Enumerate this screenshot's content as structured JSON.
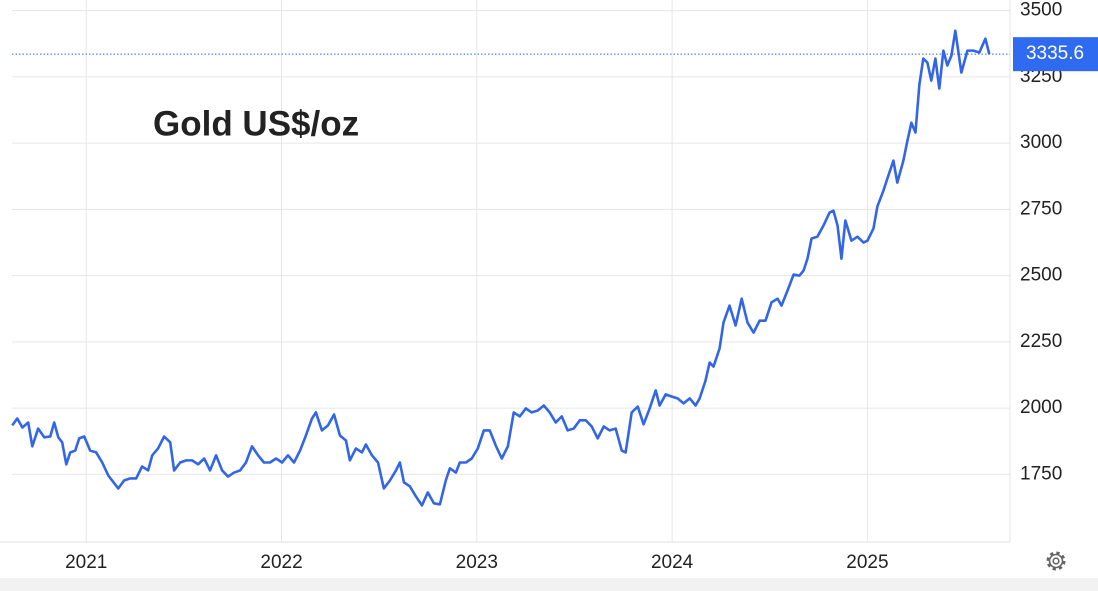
{
  "chart_data": {
    "type": "line",
    "title": "Gold US$/oz",
    "color": "#3366e6",
    "grid": true,
    "x": [
      2020.621,
      2020.647,
      2020.673,
      2020.703,
      2020.724,
      2020.754,
      2020.785,
      2020.816,
      2020.836,
      2020.857,
      2020.877,
      2020.898,
      2020.918,
      2020.944,
      2020.964,
      2020.99,
      2021.02,
      2021.051,
      2021.082,
      2021.113,
      2021.164,
      2021.194,
      2021.225,
      2021.256,
      2021.286,
      2021.317,
      2021.338,
      2021.368,
      2021.399,
      2021.43,
      2021.45,
      2021.481,
      2021.512,
      2021.542,
      2021.573,
      2021.604,
      2021.634,
      2021.665,
      2021.696,
      2021.726,
      2021.757,
      2021.788,
      2021.818,
      2021.849,
      2021.88,
      2021.91,
      2021.941,
      2021.972,
      2022.003,
      2022.033,
      2022.064,
      2022.095,
      2022.125,
      2022.156,
      2022.176,
      2022.207,
      2022.238,
      2022.269,
      2022.299,
      2022.33,
      2022.35,
      2022.381,
      2022.412,
      2022.432,
      2022.463,
      2022.494,
      2022.524,
      2022.555,
      2022.586,
      2022.606,
      2022.627,
      2022.657,
      2022.688,
      2022.719,
      2022.749,
      2022.78,
      2022.811,
      2022.841,
      2022.862,
      2022.893,
      2022.913,
      2022.944,
      2022.974,
      2023.005,
      2023.036,
      2023.066,
      2023.097,
      2023.128,
      2023.159,
      2023.189,
      2023.22,
      2023.251,
      2023.281,
      2023.312,
      2023.343,
      2023.373,
      2023.404,
      2023.435,
      2023.465,
      2023.496,
      2023.527,
      2023.558,
      2023.588,
      2023.619,
      2023.65,
      2023.68,
      2023.711,
      2023.742,
      2023.762,
      2023.793,
      2023.824,
      2023.854,
      2023.885,
      2023.916,
      2023.936,
      2023.967,
      2023.997,
      2024.028,
      2024.059,
      2024.09,
      2024.12,
      2024.141,
      2024.171,
      2024.192,
      2024.212,
      2024.243,
      2024.263,
      2024.294,
      2024.325,
      2024.356,
      2024.386,
      2024.417,
      2024.448,
      2024.478,
      2024.509,
      2024.54,
      2024.56,
      2024.591,
      2024.622,
      2024.652,
      2024.673,
      2024.693,
      2024.714,
      2024.744,
      2024.775,
      2024.806,
      2024.826,
      2024.847,
      2024.867,
      2024.887,
      2024.918,
      2024.949,
      2024.98,
      2025.0,
      2025.031,
      2025.051,
      2025.082,
      2025.102,
      2025.133,
      2025.153,
      2025.184,
      2025.205,
      2025.225,
      2025.246,
      2025.266,
      2025.286,
      2025.307,
      2025.327,
      2025.348,
      2025.368,
      2025.389,
      2025.409,
      2025.43,
      2025.45,
      2025.481,
      2025.512,
      2025.542,
      2025.573,
      2025.604,
      2025.624
    ],
    "values": [
      1935,
      1961,
      1927,
      1946,
      1856,
      1923,
      1890,
      1893,
      1946,
      1890,
      1871,
      1788,
      1833,
      1840,
      1886,
      1893,
      1840,
      1833,
      1795,
      1746,
      1697,
      1727,
      1735,
      1735,
      1780,
      1765,
      1822,
      1848,
      1893,
      1871,
      1765,
      1795,
      1803,
      1803,
      1788,
      1810,
      1765,
      1822,
      1765,
      1742,
      1757,
      1765,
      1795,
      1856,
      1822,
      1795,
      1795,
      1810,
      1795,
      1822,
      1795,
      1840,
      1897,
      1961,
      1984,
      1916,
      1935,
      1976,
      1897,
      1878,
      1803,
      1848,
      1833,
      1863,
      1822,
      1795,
      1697,
      1727,
      1765,
      1795,
      1720,
      1705,
      1667,
      1633,
      1682,
      1641,
      1637,
      1727,
      1773,
      1757,
      1795,
      1795,
      1810,
      1848,
      1916,
      1916,
      1859,
      1810,
      1856,
      1984,
      1969,
      1999,
      1984,
      1991,
      2010,
      1984,
      1946,
      1969,
      1916,
      1923,
      1954,
      1954,
      1931,
      1886,
      1931,
      1916,
      1923,
      1840,
      1833,
      1984,
      2006,
      1939,
      1999,
      2067,
      2010,
      2052,
      2044,
      2037,
      2018,
      2037,
      2010,
      2037,
      2104,
      2172,
      2157,
      2225,
      2323,
      2387,
      2312,
      2413,
      2323,
      2285,
      2330,
      2330,
      2399,
      2413,
      2387,
      2444,
      2504,
      2500,
      2519,
      2564,
      2640,
      2647,
      2689,
      2738,
      2745,
      2689,
      2564,
      2708,
      2632,
      2647,
      2625,
      2632,
      2678,
      2761,
      2821,
      2866,
      2934,
      2851,
      2934,
      3010,
      3077,
      3040,
      3221,
      3319,
      3304,
      3236,
      3319,
      3206,
      3349,
      3293,
      3330,
      3424,
      3266,
      3349,
      3349,
      3342,
      3394,
      3335.6
    ],
    "xlim": [
      2020.62,
      2025.73
    ],
    "xticks": [
      2021,
      2022,
      2023,
      2024,
      2025
    ],
    "ylim": [
      1495,
      3540
    ],
    "yticks": [
      1750,
      2000,
      2250,
      2500,
      2750,
      3000,
      3250,
      3500
    ]
  }
}
